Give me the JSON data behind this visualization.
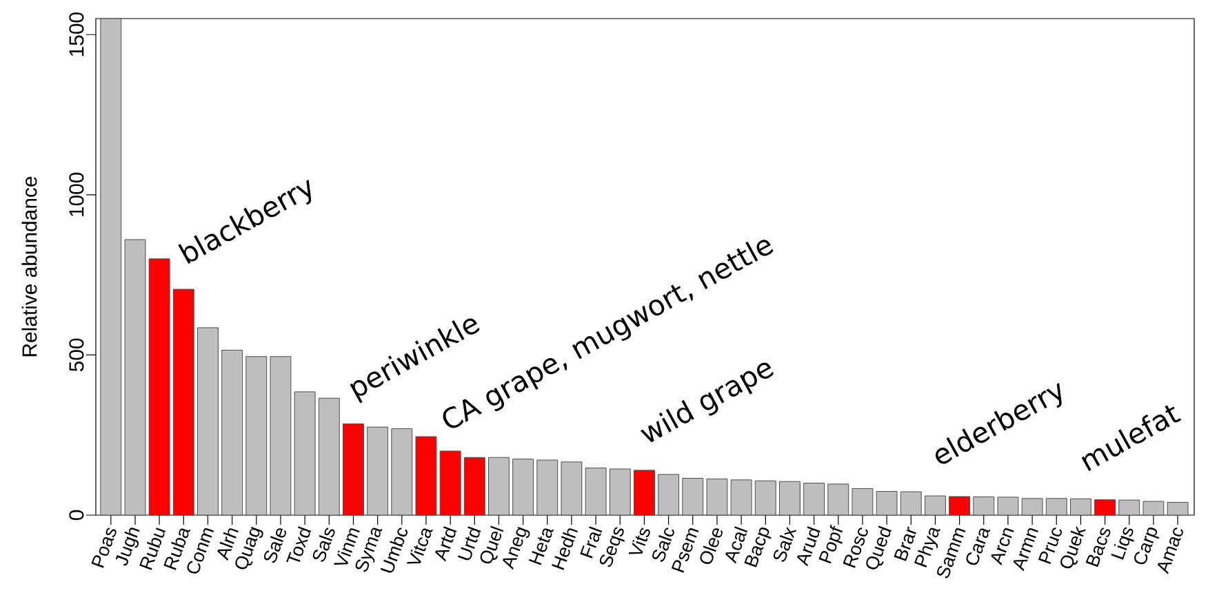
{
  "chart_data": {
    "type": "bar",
    "ylabel": "Relative abundance",
    "categories": [
      "Poas",
      "Jugh",
      "Rubu",
      "Ruba",
      "Conm",
      "Alrh",
      "Quag",
      "Sale",
      "Toxd",
      "Sals",
      "Vinm",
      "Syma",
      "Umbc",
      "Vitca",
      "Artd",
      "Urtd",
      "Quel",
      "Aneg",
      "Heta",
      "Hedh",
      "Fral",
      "Seqs",
      "Vits",
      "Salc",
      "Psem",
      "Olee",
      "Acal",
      "Bacp",
      "Salx",
      "Arud",
      "Popf",
      "Rosc",
      "Qued",
      "Brar",
      "Phya",
      "Samm",
      "Cara",
      "Arcn",
      "Armn",
      "Pruc",
      "Quek",
      "Bacs",
      "Liqs",
      "Carp",
      "Amac"
    ],
    "values": [
      1550,
      860,
      800,
      705,
      585,
      515,
      495,
      495,
      385,
      365,
      285,
      275,
      270,
      245,
      200,
      180,
      180,
      175,
      172,
      166,
      147,
      144,
      140,
      127,
      115,
      113,
      110,
      107,
      105,
      100,
      97,
      83,
      74,
      73,
      60,
      58,
      57,
      56,
      52,
      52,
      51,
      48,
      47,
      43,
      40
    ],
    "colors": [
      "#bebebe",
      "#bebebe",
      "#ff0000",
      "#ff0000",
      "#bebebe",
      "#bebebe",
      "#bebebe",
      "#bebebe",
      "#bebebe",
      "#bebebe",
      "#ff0000",
      "#bebebe",
      "#bebebe",
      "#ff0000",
      "#ff0000",
      "#ff0000",
      "#bebebe",
      "#bebebe",
      "#bebebe",
      "#bebebe",
      "#bebebe",
      "#bebebe",
      "#ff0000",
      "#bebebe",
      "#bebebe",
      "#bebebe",
      "#bebebe",
      "#bebebe",
      "#bebebe",
      "#bebebe",
      "#bebebe",
      "#bebebe",
      "#bebebe",
      "#bebebe",
      "#bebebe",
      "#ff0000",
      "#bebebe",
      "#bebebe",
      "#bebebe",
      "#bebebe",
      "#bebebe",
      "#ff0000",
      "#bebebe",
      "#bebebe",
      "#bebebe"
    ],
    "ylim": [
      0,
      1550
    ],
    "yticks": [
      0,
      500,
      1000,
      1500
    ],
    "annotations": [
      "blackberry",
      "periwinkle",
      "CA grape, mugwort, nettle",
      "wild grape",
      "elderberry",
      "mulefat"
    ]
  }
}
